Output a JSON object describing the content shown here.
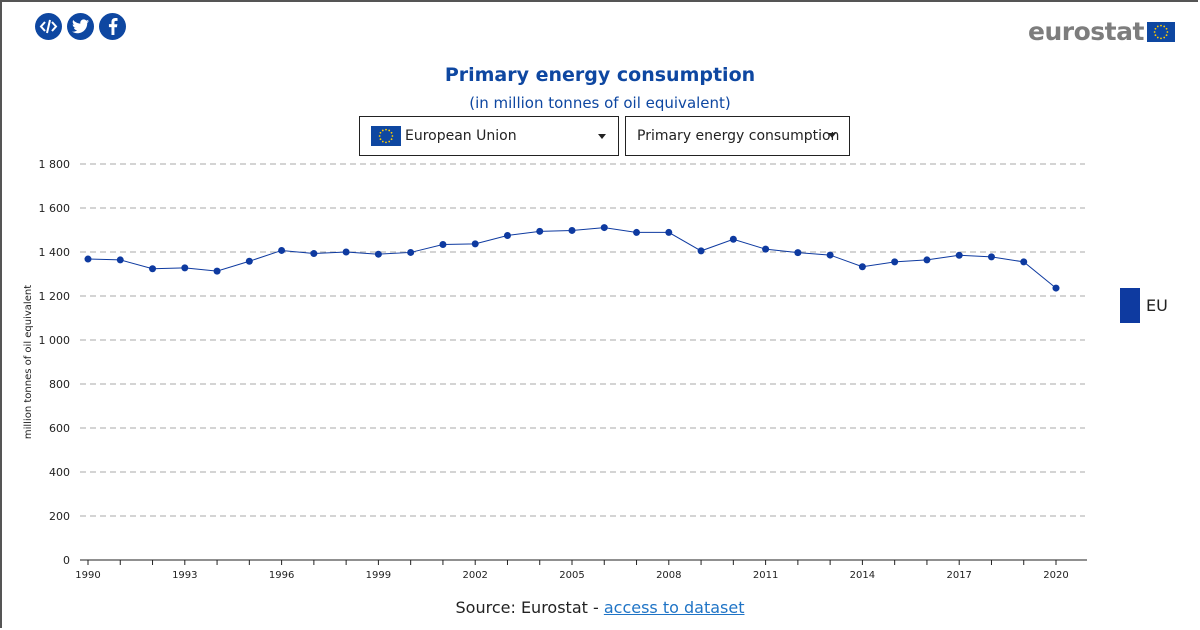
{
  "share": {
    "embed_icon": "embed-icon",
    "twitter_icon": "twitter-icon",
    "facebook_icon": "facebook-icon"
  },
  "logo": {
    "text": "eurostat",
    "flag_icon": "eu-flag-icon"
  },
  "header": {
    "title": "Primary energy consumption",
    "subtitle": "(in million tonnes of oil equivalent)"
  },
  "filters": {
    "country": "European Union",
    "indicator": "Primary energy consumption"
  },
  "legend": {
    "label": "EU",
    "color": "#0e3aa0"
  },
  "source": {
    "prefix": "Source: Eurostat - ",
    "link_text": "access to dataset"
  },
  "colors": {
    "brand": "#0e47a1",
    "series": "#0e3aa0",
    "link": "#1f74c6",
    "logo_grey": "#7d7d7d"
  },
  "chart_data": {
    "type": "line",
    "title": "",
    "xlabel": "",
    "ylabel": "million tonnes of oil equivalent",
    "ylim": [
      0,
      1800
    ],
    "yticks": [
      0,
      200,
      400,
      600,
      800,
      1000,
      1200,
      1400,
      1600,
      1800
    ],
    "ytick_labels": [
      "0",
      "200",
      "400",
      "600",
      "800",
      "1 000",
      "1 200",
      "1 400",
      "1 600",
      "1 800"
    ],
    "xlim": [
      1990,
      2020
    ],
    "xtick_labels": [
      "1990",
      "1993",
      "1996",
      "1999",
      "2002",
      "2005",
      "2008",
      "2011",
      "2014",
      "2017",
      "2020"
    ],
    "grid": true,
    "legend_position": "right",
    "x": [
      1990,
      1991,
      1992,
      1993,
      1994,
      1995,
      1996,
      1997,
      1998,
      1999,
      2000,
      2001,
      2002,
      2003,
      2004,
      2005,
      2006,
      2007,
      2008,
      2009,
      2010,
      2011,
      2012,
      2013,
      2014,
      2015,
      2016,
      2017,
      2018,
      2019,
      2020
    ],
    "series": [
      {
        "name": "EU",
        "values": [
          1368,
          1364,
          1324,
          1328,
          1313,
          1358,
          1407,
          1393,
          1400,
          1390,
          1398,
          1434,
          1437,
          1475,
          1494,
          1498,
          1511,
          1489,
          1489,
          1405,
          1458,
          1413,
          1397,
          1386,
          1333,
          1355,
          1364,
          1385,
          1378,
          1355,
          1236
        ]
      }
    ]
  }
}
